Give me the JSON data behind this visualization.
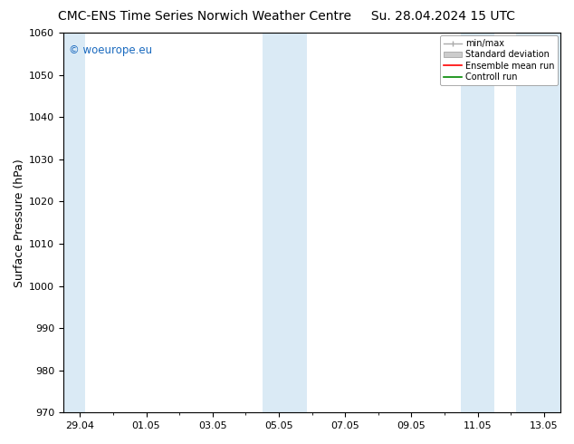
{
  "title_left": "CMC-ENS Time Series Norwich Weather Centre",
  "title_right": "Su. 28.04.2024 15 UTC",
  "ylabel": "Surface Pressure (hPa)",
  "ylim": [
    970,
    1060
  ],
  "yticks": [
    970,
    980,
    990,
    1000,
    1010,
    1020,
    1030,
    1040,
    1050,
    1060
  ],
  "xtick_labels": [
    "29.04",
    "01.05",
    "03.05",
    "05.05",
    "07.05",
    "09.05",
    "11.05",
    "13.05"
  ],
  "xtick_positions": [
    0,
    2,
    4,
    6,
    8,
    10,
    12,
    14
  ],
  "x_min": -0.5,
  "x_max": 14.5,
  "shaded_bands": [
    {
      "x_start": -0.5,
      "x_end": 0.15
    },
    {
      "x_start": 5.5,
      "x_end": 6.85
    },
    {
      "x_start": 11.5,
      "x_end": 12.5
    },
    {
      "x_start": 13.15,
      "x_end": 14.5
    }
  ],
  "shade_color": "#daeaf5",
  "watermark": "© woeurope.eu",
  "watermark_color": "#1a6abf",
  "legend_labels": [
    "min/max",
    "Standard deviation",
    "Ensemble mean run",
    "Controll run"
  ],
  "legend_line_colors": [
    "#999999",
    "#cccccc",
    "#ff0000",
    "#008800"
  ],
  "background_color": "#ffffff",
  "title_fontsize": 10,
  "tick_fontsize": 8,
  "ylabel_fontsize": 9,
  "legend_fontsize": 7
}
